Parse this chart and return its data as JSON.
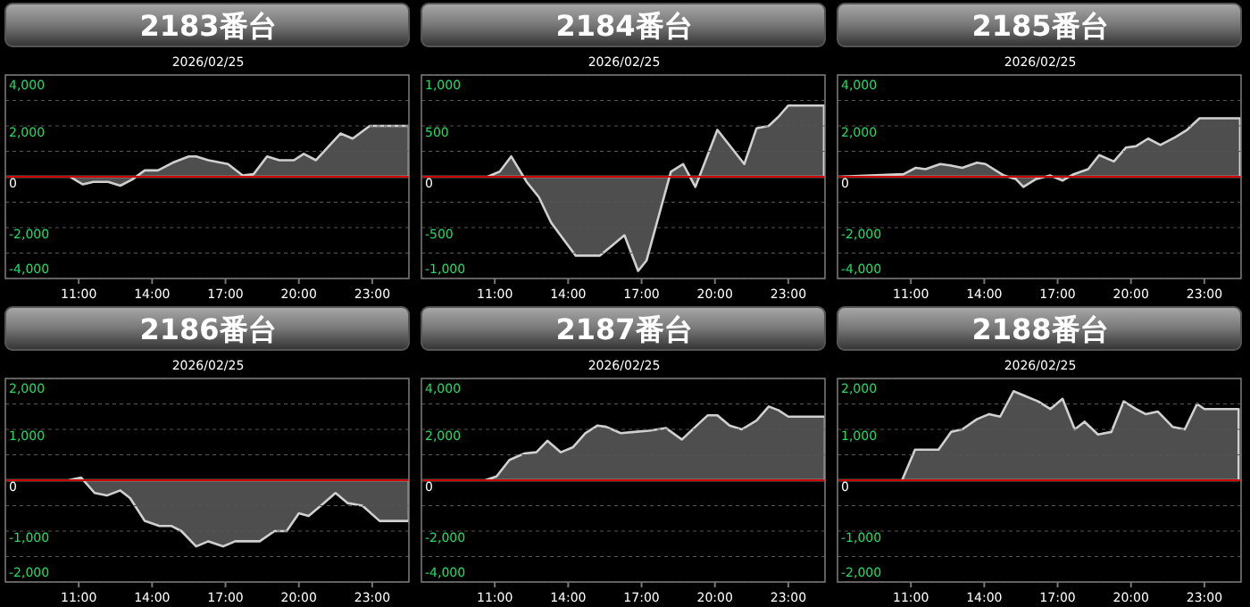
{
  "chart_data": [
    {
      "type": "area",
      "title": "2183番台",
      "subtitle": "2026/02/25",
      "color": "#d0d0d0",
      "xlim": [
        8,
        24.5
      ],
      "xticks": [
        {
          "value": 11,
          "label": "11:00"
        },
        {
          "value": 14,
          "label": "14:00"
        },
        {
          "value": 17,
          "label": "17:00"
        },
        {
          "value": 20,
          "label": "20:00"
        },
        {
          "value": 23,
          "label": "23:00"
        }
      ],
      "ylim": [
        -4000,
        4000
      ],
      "yticks": [
        {
          "value": -4000,
          "label": "-4,000"
        },
        {
          "value": -3000,
          "label": null
        },
        {
          "value": -2000,
          "label": "-2,000"
        },
        {
          "value": -1000,
          "label": null
        },
        0,
        {
          "value": 1000,
          "label": null
        },
        {
          "value": 2000,
          "label": "2,000"
        },
        {
          "value": 3000,
          "label": null
        },
        {
          "value": 4000,
          "label": "4,000"
        }
      ],
      "grid": "y",
      "ref_lines": [
        {
          "axis": "y",
          "value": 0,
          "color": "#cc0000"
        }
      ],
      "x": [
        8,
        10.64,
        11.17,
        11.6,
        12.2,
        12.7,
        13.2,
        13.7,
        14.24,
        14.84,
        15.5,
        15.8,
        16.3,
        17.1,
        17.7,
        18.15,
        18.7,
        19.2,
        19.8,
        20.2,
        20.7,
        21.7,
        22.2,
        22.9,
        24.5
      ],
      "values": [
        0,
        0,
        -300,
        -200,
        -200,
        -350,
        -100,
        250,
        250,
        550,
        800,
        800,
        650,
        500,
        50,
        100,
        800,
        650,
        650,
        900,
        650,
        1700,
        1500,
        2000,
        2000
      ]
    },
    {
      "type": "area",
      "title": "2184番台",
      "subtitle": "2026/02/25",
      "color": "#d0d0d0",
      "xlim": [
        8,
        24.5
      ],
      "xticks": [
        {
          "value": 11,
          "label": "11:00"
        },
        {
          "value": 14,
          "label": "14:00"
        },
        {
          "value": 17,
          "label": "17:00"
        },
        {
          "value": 20,
          "label": "20:00"
        },
        {
          "value": 23,
          "label": "23:00"
        }
      ],
      "ylim": [
        -1000,
        1000
      ],
      "yticks": [
        {
          "value": -1000,
          "label": "-1,000"
        },
        {
          "value": -750,
          "label": null
        },
        -500,
        {
          "value": -250,
          "label": null
        },
        0,
        {
          "value": 250,
          "label": null
        },
        500,
        {
          "value": 750,
          "label": null
        },
        {
          "value": 1000,
          "label": "1,000"
        }
      ],
      "grid": "y",
      "ref_lines": [
        {
          "axis": "y",
          "value": 0,
          "color": "#cc0000"
        }
      ],
      "x": [
        8,
        10.7,
        11.2,
        11.67,
        12.3,
        12.8,
        13.3,
        14.3,
        15.3,
        15.8,
        16.3,
        16.86,
        17.2,
        18.2,
        18.7,
        19.2,
        20.1,
        21.2,
        21.7,
        22.2,
        22.6,
        23,
        24.46
      ],
      "values": [
        0,
        0,
        50,
        200,
        -50,
        -200,
        -450,
        -775,
        -775,
        -675,
        -575,
        -925,
        -825,
        50,
        125,
        -100,
        460,
        125,
        475,
        500,
        590,
        700,
        700
      ]
    },
    {
      "type": "area",
      "title": "2185番台",
      "subtitle": "2026/02/25",
      "color": "#d0d0d0",
      "xlim": [
        8,
        24.5
      ],
      "xticks": [
        {
          "value": 11,
          "label": "11:00"
        },
        {
          "value": 14,
          "label": "14:00"
        },
        {
          "value": 17,
          "label": "17:00"
        },
        {
          "value": 20,
          "label": "20:00"
        },
        {
          "value": 23,
          "label": "23:00"
        }
      ],
      "ylim": [
        -4000,
        4000
      ],
      "yticks": [
        {
          "value": -4000,
          "label": "-4,000"
        },
        {
          "value": -3000,
          "label": null
        },
        {
          "value": -2000,
          "label": "-2,000"
        },
        {
          "value": -1000,
          "label": null
        },
        0,
        {
          "value": 1000,
          "label": null
        },
        {
          "value": 2000,
          "label": "2,000"
        },
        {
          "value": 3000,
          "label": null
        },
        {
          "value": 4000,
          "label": "4,000"
        }
      ],
      "grid": "y",
      "ref_lines": [
        {
          "axis": "y",
          "value": 0,
          "color": "#cc0000"
        }
      ],
      "x": [
        8,
        10.7,
        11.2,
        11.6,
        12.2,
        12.6,
        13.1,
        13.7,
        14.05,
        14.8,
        15.3,
        15.6,
        16.1,
        16.7,
        17.2,
        17.65,
        18.25,
        18.7,
        19.3,
        19.8,
        20.2,
        20.7,
        21.2,
        21.8,
        22.3,
        22.8,
        24.46
      ],
      "values": [
        0,
        100,
        350,
        300,
        500,
        450,
        350,
        550,
        500,
        50,
        -100,
        -400,
        -100,
        50,
        -150,
        100,
        300,
        850,
        600,
        1150,
        1200,
        1500,
        1250,
        1550,
        1850,
        2300,
        2300
      ]
    },
    {
      "type": "area",
      "title": "2186番台",
      "subtitle": "2026/02/25",
      "color": "#d0d0d0",
      "xlim": [
        8,
        24.5
      ],
      "xticks": [
        {
          "value": 11,
          "label": "11:00"
        },
        {
          "value": 14,
          "label": "14:00"
        },
        {
          "value": 17,
          "label": "17:00"
        },
        {
          "value": 20,
          "label": "20:00"
        },
        {
          "value": 23,
          "label": "23:00"
        }
      ],
      "ylim": [
        -2000,
        2000
      ],
      "yticks": [
        {
          "value": -2000,
          "label": "-2,000"
        },
        {
          "value": -1500,
          "label": null
        },
        {
          "value": -1000,
          "label": "-1,000"
        },
        {
          "value": -500,
          "label": null
        },
        0,
        {
          "value": 500,
          "label": null
        },
        {
          "value": 1000,
          "label": "1,000"
        },
        {
          "value": 1500,
          "label": null
        },
        {
          "value": 2000,
          "label": "2,000"
        }
      ],
      "grid": "y",
      "ref_lines": [
        {
          "axis": "y",
          "value": 0,
          "color": "#cc0000"
        }
      ],
      "x": [
        8,
        10.57,
        11.1,
        11.65,
        12.15,
        12.7,
        13.1,
        13.7,
        14.3,
        14.8,
        15.2,
        15.8,
        16.3,
        16.9,
        17.4,
        17.9,
        18.4,
        19,
        19.5,
        20,
        20.4,
        20.9,
        21.5,
        22,
        22.6,
        23.3,
        24.5
      ],
      "values": [
        0,
        0,
        50,
        -250,
        -300,
        -200,
        -350,
        -800,
        -900,
        -900,
        -1000,
        -1300,
        -1200,
        -1300,
        -1200,
        -1200,
        -1200,
        -1000,
        -1000,
        -650,
        -700,
        -500,
        -250,
        -450,
        -500,
        -800,
        -800
      ]
    },
    {
      "type": "area",
      "title": "2187番台",
      "subtitle": "2026/02/25",
      "color": "#d0d0d0",
      "xlim": [
        8,
        24.5
      ],
      "xticks": [
        {
          "value": 11,
          "label": "11:00"
        },
        {
          "value": 14,
          "label": "14:00"
        },
        {
          "value": 17,
          "label": "17:00"
        },
        {
          "value": 20,
          "label": "20:00"
        },
        {
          "value": 23,
          "label": "23:00"
        }
      ],
      "ylim": [
        -4000,
        4000
      ],
      "yticks": [
        {
          "value": -4000,
          "label": "-4,000"
        },
        {
          "value": -3000,
          "label": null
        },
        {
          "value": -2000,
          "label": "-2,000"
        },
        {
          "value": -1000,
          "label": null
        },
        0,
        {
          "value": 1000,
          "label": null
        },
        {
          "value": 2000,
          "label": "2,000"
        },
        {
          "value": 3000,
          "label": null
        },
        {
          "value": 4000,
          "label": "4,000"
        }
      ],
      "grid": "y",
      "ref_lines": [
        {
          "axis": "y",
          "value": 0,
          "color": "#cc0000"
        }
      ],
      "x": [
        8,
        10.6,
        11.07,
        11.6,
        12.2,
        12.7,
        13.15,
        13.7,
        14.2,
        14.7,
        15.2,
        15.55,
        16.15,
        16.7,
        17.3,
        18,
        18.65,
        19.2,
        19.7,
        20.1,
        20.6,
        21.1,
        21.7,
        22.2,
        22.6,
        23,
        24.5
      ],
      "values": [
        0,
        0,
        150,
        800,
        1050,
        1100,
        1550,
        1100,
        1300,
        1850,
        2150,
        2100,
        1850,
        1900,
        1950,
        2050,
        1600,
        2100,
        2550,
        2550,
        2150,
        2000,
        2350,
        2900,
        2750,
        2500,
        2500
      ]
    },
    {
      "type": "area",
      "title": "2188番台",
      "subtitle": "2026/02/25",
      "color": "#d0d0d0",
      "xlim": [
        8,
        24.5
      ],
      "xticks": [
        {
          "value": 11,
          "label": "11:00"
        },
        {
          "value": 14,
          "label": "14:00"
        },
        {
          "value": 17,
          "label": "17:00"
        },
        {
          "value": 20,
          "label": "20:00"
        },
        {
          "value": 23,
          "label": "23:00"
        }
      ],
      "ylim": [
        -2000,
        2000
      ],
      "yticks": [
        {
          "value": -2000,
          "label": "-2,000"
        },
        {
          "value": -1500,
          "label": null
        },
        {
          "value": -1000,
          "label": "-1,000"
        },
        {
          "value": -500,
          "label": null
        },
        0,
        {
          "value": 500,
          "label": null
        },
        {
          "value": 1000,
          "label": "1,000"
        },
        {
          "value": 1500,
          "label": null
        },
        {
          "value": 2000,
          "label": "2,000"
        }
      ],
      "grid": "y",
      "ref_lines": [
        {
          "axis": "y",
          "value": 0,
          "color": "#cc0000"
        }
      ],
      "x": [
        8,
        10.64,
        11.17,
        12.13,
        12.65,
        13.1,
        13.7,
        14.2,
        14.65,
        15.2,
        15.7,
        16.2,
        16.7,
        17.2,
        17.7,
        18.1,
        18.65,
        19.2,
        19.7,
        20.2,
        20.6,
        21.1,
        21.7,
        22.2,
        22.7,
        23,
        24.4
      ],
      "values": [
        0,
        0,
        600,
        600,
        950,
        1000,
        1200,
        1300,
        1250,
        1750,
        1650,
        1550,
        1400,
        1600,
        1000,
        1150,
        900,
        950,
        1550,
        1400,
        1300,
        1350,
        1050,
        1000,
        1500,
        1400,
        1400
      ]
    }
  ]
}
